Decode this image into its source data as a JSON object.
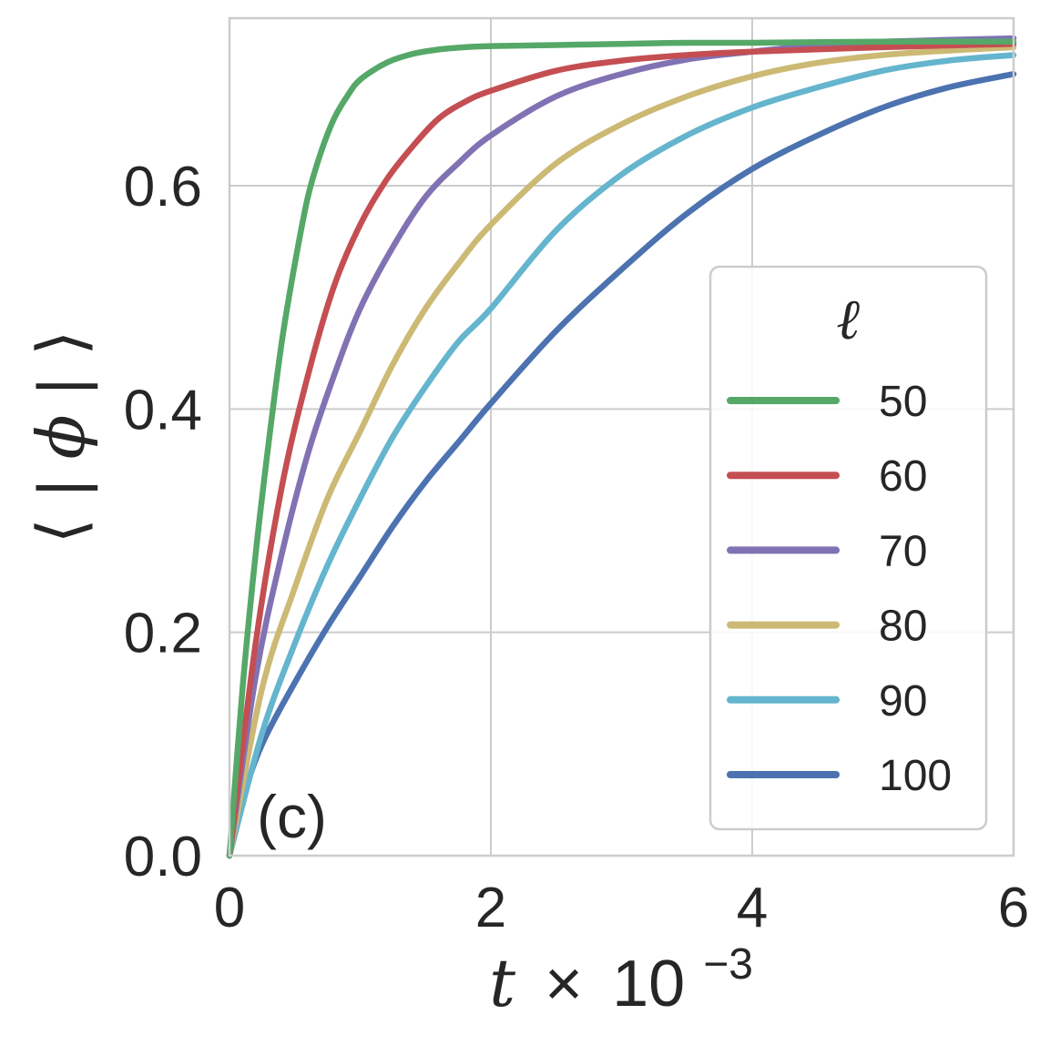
{
  "chart_data": {
    "type": "line",
    "title": "",
    "panel_label": "(c)",
    "xlabel": {
      "base": "t",
      "times": "×",
      "ten": "10",
      "exponent": "−3"
    },
    "ylabel": {
      "open": "⟨",
      "bar_left": "|",
      "symbol": "ϕ",
      "bar_right": "|",
      "close": "⟩"
    },
    "xlim": [
      0,
      6
    ],
    "ylim": [
      0,
      0.75
    ],
    "xticks": [
      0,
      2,
      4,
      6
    ],
    "xtick_labels": [
      "0",
      "2",
      "4",
      "6"
    ],
    "yticks": [
      0.0,
      0.2,
      0.4,
      0.6
    ],
    "ytick_labels": [
      "0.0",
      "0.2",
      "0.4",
      "0.6"
    ],
    "grid": true,
    "legend": {
      "title": "ℓ",
      "placement": "lower-right"
    },
    "series": [
      {
        "name": "50",
        "color": "#55a868",
        "x": [
          0.0,
          0.1,
          0.2,
          0.3,
          0.4,
          0.5,
          0.6,
          0.7,
          0.8,
          0.9,
          1.0,
          1.2,
          1.4,
          1.6,
          1.8,
          2.0,
          2.5,
          3.0,
          3.5,
          4.0,
          5.0,
          6.0
        ],
        "y": [
          0.0,
          0.15,
          0.27,
          0.37,
          0.46,
          0.53,
          0.59,
          0.63,
          0.66,
          0.68,
          0.695,
          0.71,
          0.718,
          0.722,
          0.724,
          0.725,
          0.726,
          0.727,
          0.728,
          0.728,
          0.729,
          0.729
        ]
      },
      {
        "name": "60",
        "color": "#c44e52",
        "x": [
          0.0,
          0.2,
          0.4,
          0.6,
          0.8,
          1.0,
          1.2,
          1.4,
          1.6,
          1.8,
          2.0,
          2.5,
          3.0,
          3.5,
          4.0,
          5.0,
          6.0
        ],
        "y": [
          0.0,
          0.19,
          0.33,
          0.43,
          0.51,
          0.565,
          0.605,
          0.635,
          0.66,
          0.675,
          0.685,
          0.703,
          0.712,
          0.717,
          0.72,
          0.724,
          0.727
        ]
      },
      {
        "name": "70",
        "color": "#8172b3",
        "x": [
          0.0,
          0.2,
          0.4,
          0.6,
          0.8,
          1.0,
          1.25,
          1.5,
          1.75,
          2.0,
          2.5,
          3.0,
          3.5,
          4.0,
          4.5,
          5.0,
          6.0
        ],
        "y": [
          0.0,
          0.16,
          0.27,
          0.36,
          0.43,
          0.49,
          0.545,
          0.59,
          0.62,
          0.645,
          0.68,
          0.7,
          0.713,
          0.72,
          0.726,
          0.729,
          0.732
        ]
      },
      {
        "name": "80",
        "color": "#ccb974",
        "x": [
          0.0,
          0.25,
          0.5,
          0.75,
          1.0,
          1.25,
          1.5,
          1.75,
          2.0,
          2.5,
          3.0,
          3.5,
          4.0,
          4.5,
          5.0,
          5.5,
          6.0
        ],
        "y": [
          0.0,
          0.15,
          0.24,
          0.32,
          0.38,
          0.44,
          0.49,
          0.53,
          0.565,
          0.62,
          0.655,
          0.68,
          0.698,
          0.71,
          0.717,
          0.721,
          0.724
        ]
      },
      {
        "name": "90",
        "color": "#64b5cd",
        "x": [
          0.0,
          0.25,
          0.5,
          0.75,
          1.0,
          1.25,
          1.5,
          1.75,
          2.0,
          2.5,
          3.0,
          3.5,
          4.0,
          4.5,
          5.0,
          5.5,
          6.0
        ],
        "y": [
          0.0,
          0.11,
          0.19,
          0.26,
          0.32,
          0.375,
          0.42,
          0.46,
          0.49,
          0.56,
          0.61,
          0.645,
          0.67,
          0.688,
          0.703,
          0.712,
          0.717
        ]
      },
      {
        "name": "100",
        "color": "#4c72b0",
        "x": [
          0.0,
          0.1,
          0.25,
          0.5,
          0.75,
          1.0,
          1.25,
          1.5,
          1.75,
          2.0,
          2.5,
          3.0,
          3.5,
          4.0,
          4.5,
          5.0,
          5.5,
          6.0
        ],
        "y": [
          0.0,
          0.05,
          0.1,
          0.155,
          0.205,
          0.25,
          0.295,
          0.335,
          0.37,
          0.405,
          0.47,
          0.525,
          0.575,
          0.615,
          0.645,
          0.67,
          0.688,
          0.7
        ]
      }
    ]
  }
}
